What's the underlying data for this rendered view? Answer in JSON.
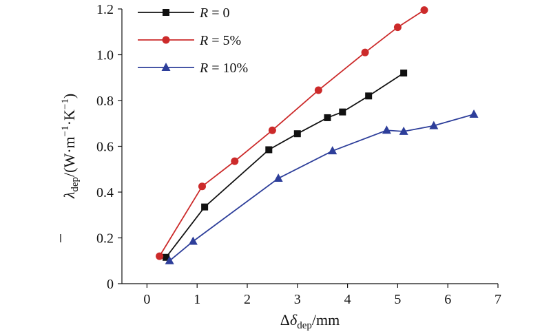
{
  "chart_data": {
    "type": "line",
    "xlim": [
      -0.5,
      7
    ],
    "ylim": [
      0,
      1.2
    ],
    "x_ticks": [
      "0",
      "1",
      "2",
      "3",
      "4",
      "5",
      "6",
      "7"
    ],
    "y_ticks": [
      "0",
      "0.2",
      "0.4",
      "0.6",
      "0.8",
      "1.0",
      "1.2"
    ],
    "x_ticks_values": [
      0,
      1,
      2,
      3,
      4,
      5,
      6,
      7
    ],
    "y_ticks_values": [
      0,
      0.2,
      0.4,
      0.6,
      0.8,
      1.0,
      1.2
    ],
    "xlabel": {
      "main": "Δ",
      "sym": "δ",
      "sub": "dep",
      "unit": "/mm"
    },
    "ylabel": {
      "sym": "λ",
      "sub": "dep",
      "unit_a": "/(W·m",
      "exp1": "−1",
      "unit_b": "·K",
      "exp2": "−1",
      "unit_c": ")"
    },
    "legend_position": "top-left",
    "series": [
      {
        "name_var": "R",
        "name_rest": " = 0",
        "color": "#111111",
        "marker": "square",
        "x": [
          0.38,
          1.15,
          2.43,
          3.0,
          3.6,
          3.9,
          4.42,
          5.12
        ],
        "y": [
          0.115,
          0.335,
          0.585,
          0.655,
          0.725,
          0.75,
          0.82,
          0.92
        ]
      },
      {
        "name_var": "R",
        "name_rest": " = 5%",
        "color": "#cc2a2a",
        "marker": "circle",
        "x": [
          0.25,
          1.1,
          1.75,
          2.5,
          3.42,
          4.35,
          5.0,
          5.53
        ],
        "y": [
          0.12,
          0.425,
          0.535,
          0.67,
          0.845,
          1.01,
          1.12,
          1.195
        ]
      },
      {
        "name_var": "R",
        "name_rest": " = 10%",
        "color": "#2d3e9a",
        "marker": "triangle",
        "x": [
          0.45,
          0.92,
          2.62,
          3.7,
          4.78,
          5.12,
          5.72,
          6.52
        ],
        "y": [
          0.1,
          0.185,
          0.46,
          0.58,
          0.67,
          0.665,
          0.69,
          0.74
        ]
      }
    ]
  }
}
